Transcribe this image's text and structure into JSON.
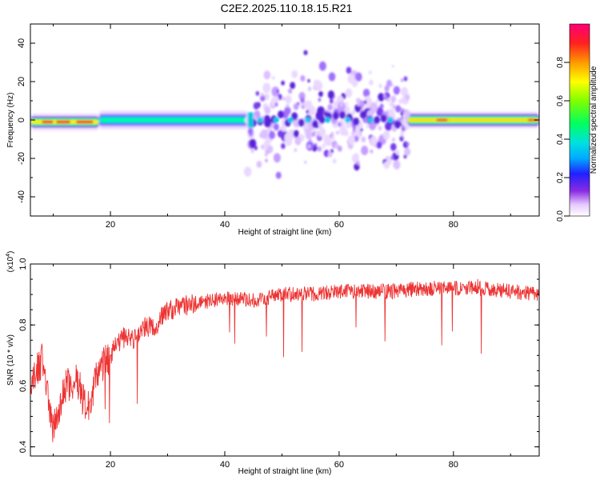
{
  "title": "C2E2.2025.110.18.15.R21",
  "chart_data": [
    {
      "type": "heatmap",
      "title": "C2E2.2025.110.18.15.R21",
      "xlabel": "Height of straight line (km)",
      "ylabel": "Frequency (Hz)",
      "xlim": [
        6,
        95
      ],
      "ylim": [
        -50,
        50
      ],
      "xticks": [
        20,
        40,
        60,
        80
      ],
      "yticks": [
        40,
        20,
        0,
        -20,
        -40
      ],
      "colorbar": {
        "label": "Normalized spectral amplitude",
        "range": [
          0.0,
          1.0
        ],
        "ticks": [
          "0.0",
          "0.2",
          "0.4",
          "0.6",
          "0.8"
        ],
        "colormap": "rainbow (white-violet-blue-cyan-green-yellow-red-magenta)"
      },
      "bands": [
        {
          "x_start": 6,
          "x_end": 18,
          "freq_center": -1,
          "amplitude": 0.75
        },
        {
          "x_start": 18,
          "x_end": 44,
          "freq_center": 0,
          "amplitude": 0.35
        },
        {
          "x_start": 44,
          "x_end": 72,
          "freq_center": 0,
          "amplitude": 0.2,
          "scatter_range": [
            -42,
            33
          ]
        },
        {
          "x_start": 72,
          "x_end": 95,
          "freq_center": 0,
          "amplitude": 0.7
        }
      ]
    },
    {
      "type": "line",
      "xlabel": "Height of straight line (km)",
      "ylabel": "SNR (10 * v/v)",
      "scale_label": "(x10^4)",
      "xlim": [
        6,
        95
      ],
      "ylim": [
        0.37,
        1.0
      ],
      "xticks": [
        20,
        40,
        60,
        80
      ],
      "yticks": [
        "1.0",
        "0.8",
        "0.6",
        "0.4"
      ],
      "color": "#ee3333",
      "series": [
        {
          "x": [
            6,
            8,
            10,
            12,
            14,
            16,
            18,
            20,
            22,
            24,
            26,
            28,
            30,
            35,
            40,
            45,
            50,
            55,
            60,
            65,
            70,
            75,
            80,
            85,
            90,
            95
          ],
          "y": [
            0.6,
            0.68,
            0.45,
            0.6,
            0.62,
            0.52,
            0.66,
            0.7,
            0.76,
            0.75,
            0.79,
            0.8,
            0.85,
            0.87,
            0.89,
            0.88,
            0.9,
            0.9,
            0.91,
            0.91,
            0.91,
            0.92,
            0.92,
            0.92,
            0.91,
            0.9
          ]
        }
      ]
    }
  ]
}
